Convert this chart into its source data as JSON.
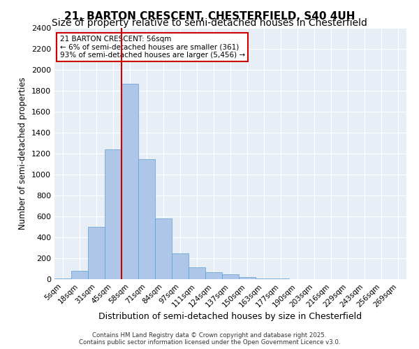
{
  "title1": "21, BARTON CRESCENT, CHESTERFIELD, S40 4UH",
  "title2": "Size of property relative to semi-detached houses in Chesterfield",
  "xlabel": "Distribution of semi-detached houses by size in Chesterfield",
  "ylabel": "Number of semi-detached properties",
  "bins": [
    "5sqm",
    "18sqm",
    "31sqm",
    "45sqm",
    "58sqm",
    "71sqm",
    "84sqm",
    "97sqm",
    "111sqm",
    "124sqm",
    "137sqm",
    "150sqm",
    "163sqm",
    "177sqm",
    "190sqm",
    "203sqm",
    "216sqm",
    "229sqm",
    "243sqm",
    "256sqm",
    "269sqm"
  ],
  "values": [
    5,
    80,
    500,
    1240,
    1870,
    1145,
    580,
    245,
    115,
    65,
    45,
    20,
    5,
    5,
    0,
    0,
    0,
    0,
    0,
    0,
    0
  ],
  "property_label": "21 BARTON CRESCENT: 56sqm",
  "annotation_line1": "← 6% of semi-detached houses are smaller (361)",
  "annotation_line2": "93% of semi-detached houses are larger (5,456) →",
  "vline_x_index": 3.5,
  "bar_color": "#aec6e8",
  "bar_edge_color": "#5a9fd4",
  "vline_color": "#cc0000",
  "box_edge_color": "#cc0000",
  "ylim": [
    0,
    2400
  ],
  "yticks": [
    0,
    200,
    400,
    600,
    800,
    1000,
    1200,
    1400,
    1600,
    1800,
    2000,
    2200,
    2400
  ],
  "footer1": "Contains HM Land Registry data © Crown copyright and database right 2025.",
  "footer2": "Contains public sector information licensed under the Open Government Licence v3.0.",
  "bg_color": "#e8eef6",
  "title1_fontsize": 11,
  "title2_fontsize": 10
}
